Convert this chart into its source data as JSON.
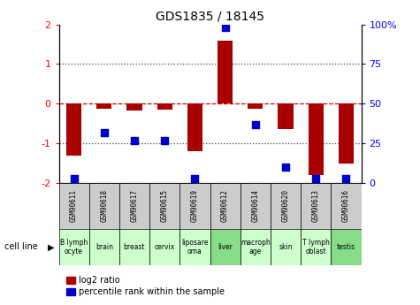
{
  "title": "GDS1835 / 18145",
  "samples": [
    "GSM90611",
    "GSM90618",
    "GSM90617",
    "GSM90615",
    "GSM90619",
    "GSM90612",
    "GSM90614",
    "GSM90620",
    "GSM90613",
    "GSM90616"
  ],
  "cell_lines": [
    "B lymph\nocyte",
    "brain",
    "breast",
    "cervix",
    "liposare\noma",
    "liver",
    "macroph\nage",
    "skin",
    "T lymph\noblast",
    "testis"
  ],
  "log2_ratio": [
    -1.3,
    -0.12,
    -0.18,
    -0.15,
    -1.2,
    1.6,
    -0.12,
    -0.65,
    -1.8,
    -1.5
  ],
  "percentile_rank": [
    3,
    32,
    27,
    27,
    3,
    98,
    37,
    10,
    3,
    3
  ],
  "bar_color": "#aa0000",
  "dot_color": "#0000cc",
  "redline_color": "#cc0000",
  "dotted_line_color": "#444444",
  "ylim_left": [
    -2,
    2
  ],
  "ylim_right": [
    0,
    100
  ],
  "yticks_left": [
    -2,
    -1,
    0,
    1,
    2
  ],
  "yticks_right": [
    0,
    25,
    50,
    75,
    100
  ],
  "ytick_labels_right": [
    "0",
    "25",
    "50",
    "75",
    "100%"
  ],
  "gsm_box_color": "#cccccc",
  "bar_width": 0.5,
  "dot_size": 28,
  "legend_red_label": "log2 ratio",
  "legend_blue_label": "percentile rank within the sample",
  "cell_line_label": "cell line",
  "cell_line_colors": [
    "#ccffcc",
    "#ccffcc",
    "#ccffcc",
    "#ccffcc",
    "#ccffcc",
    "#88dd88",
    "#ccffcc",
    "#ccffcc",
    "#ccffcc",
    "#88dd88"
  ]
}
